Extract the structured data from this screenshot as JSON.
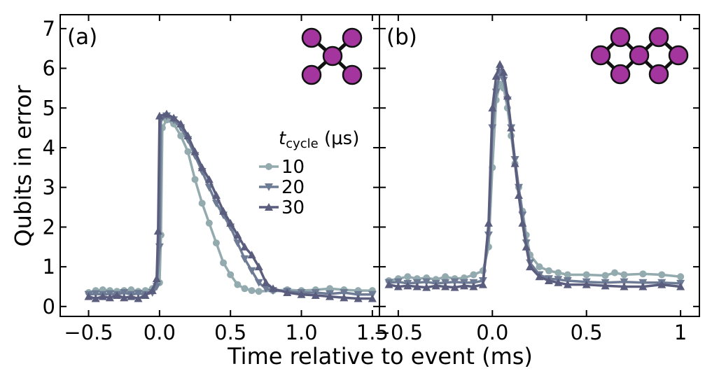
{
  "colors": {
    "s10": "#93aaae",
    "s20": "#6e7b95",
    "s30": "#5a5d7e",
    "node": "#a4359f",
    "node_edge": "#111111"
  },
  "figure": {
    "ylabel": "Qubits in error",
    "xlabel": "Time relative to event (ms)",
    "legend": {
      "title_main": "t",
      "title_sub": "cycle",
      "title_unit": " (μs)",
      "entries": [
        "10",
        "20",
        "30"
      ]
    }
  },
  "chart_data": [
    {
      "type": "line",
      "panel_label": "(a)",
      "xlim": [
        -0.7,
        1.55
      ],
      "ylim": [
        -0.25,
        7.35
      ],
      "xticks": [
        -0.5,
        0.0,
        0.5,
        1.0,
        1.5
      ],
      "xtick_labels": [
        "−0.5",
        "0.0",
        "0.5",
        "1.0",
        "1.5"
      ],
      "yticks": [
        0,
        1,
        2,
        3,
        4,
        5,
        6,
        7
      ],
      "ytick_labels": [
        "0",
        "1",
        "2",
        "3",
        "4",
        "5",
        "6",
        "7"
      ],
      "inset_graph": "five-node star",
      "series": [
        {
          "name": "10",
          "marker": "circle",
          "color": "#93aaae",
          "points": [
            [
              -0.5,
              0.35
            ],
            [
              -0.45,
              0.4
            ],
            [
              -0.4,
              0.42
            ],
            [
              -0.35,
              0.4
            ],
            [
              -0.3,
              0.38
            ],
            [
              -0.25,
              0.4
            ],
            [
              -0.2,
              0.42
            ],
            [
              -0.15,
              0.38
            ],
            [
              -0.1,
              0.4
            ],
            [
              -0.05,
              0.45
            ],
            [
              0.0,
              0.6
            ],
            [
              0.01,
              1.8
            ],
            [
              0.02,
              4.5
            ],
            [
              0.05,
              4.7
            ],
            [
              0.1,
              4.6
            ],
            [
              0.15,
              4.3
            ],
            [
              0.2,
              3.9
            ],
            [
              0.25,
              3.2
            ],
            [
              0.3,
              2.6
            ],
            [
              0.35,
              2.1
            ],
            [
              0.4,
              1.6
            ],
            [
              0.45,
              1.1
            ],
            [
              0.5,
              0.8
            ],
            [
              0.55,
              0.55
            ],
            [
              0.6,
              0.45
            ],
            [
              0.65,
              0.4
            ],
            [
              0.7,
              0.38
            ],
            [
              0.8,
              0.4
            ],
            [
              0.9,
              0.42
            ],
            [
              1.0,
              0.4
            ],
            [
              1.1,
              0.42
            ],
            [
              1.2,
              0.45
            ],
            [
              1.3,
              0.42
            ],
            [
              1.4,
              0.4
            ],
            [
              1.5,
              0.4
            ]
          ]
        },
        {
          "name": "20",
          "marker": "triangle-down",
          "color": "#6e7b95",
          "points": [
            [
              -0.5,
              0.3
            ],
            [
              -0.45,
              0.32
            ],
            [
              -0.4,
              0.3
            ],
            [
              -0.35,
              0.32
            ],
            [
              -0.3,
              0.3
            ],
            [
              -0.25,
              0.35
            ],
            [
              -0.2,
              0.3
            ],
            [
              -0.15,
              0.33
            ],
            [
              -0.1,
              0.3
            ],
            [
              -0.05,
              0.35
            ],
            [
              -0.02,
              0.5
            ],
            [
              0.0,
              1.5
            ],
            [
              0.01,
              4.7
            ],
            [
              0.05,
              4.8
            ],
            [
              0.1,
              4.7
            ],
            [
              0.15,
              4.5
            ],
            [
              0.2,
              4.2
            ],
            [
              0.25,
              3.8
            ],
            [
              0.3,
              3.4
            ],
            [
              0.35,
              3.0
            ],
            [
              0.4,
              2.6
            ],
            [
              0.45,
              2.3
            ],
            [
              0.5,
              2.0
            ],
            [
              0.55,
              1.6
            ],
            [
              0.6,
              1.2
            ],
            [
              0.65,
              0.9
            ],
            [
              0.7,
              0.6
            ],
            [
              0.75,
              0.45
            ],
            [
              0.8,
              0.4
            ],
            [
              0.9,
              0.38
            ],
            [
              1.0,
              0.35
            ],
            [
              1.1,
              0.35
            ],
            [
              1.2,
              0.32
            ],
            [
              1.3,
              0.35
            ],
            [
              1.4,
              0.3
            ],
            [
              1.5,
              0.3
            ]
          ]
        },
        {
          "name": "30",
          "marker": "triangle-up",
          "color": "#5a5d7e",
          "points": [
            [
              -0.5,
              0.25
            ],
            [
              -0.45,
              0.2
            ],
            [
              -0.4,
              0.25
            ],
            [
              -0.35,
              0.22
            ],
            [
              -0.3,
              0.28
            ],
            [
              -0.25,
              0.22
            ],
            [
              -0.2,
              0.25
            ],
            [
              -0.15,
              0.2
            ],
            [
              -0.1,
              0.28
            ],
            [
              -0.05,
              0.4
            ],
            [
              -0.02,
              0.7
            ],
            [
              -0.01,
              1.9
            ],
            [
              0.0,
              4.8
            ],
            [
              0.05,
              4.85
            ],
            [
              0.1,
              4.75
            ],
            [
              0.15,
              4.6
            ],
            [
              0.2,
              4.3
            ],
            [
              0.25,
              3.9
            ],
            [
              0.3,
              3.5
            ],
            [
              0.35,
              3.2
            ],
            [
              0.4,
              2.8
            ],
            [
              0.45,
              2.4
            ],
            [
              0.5,
              2.1
            ],
            [
              0.55,
              1.8
            ],
            [
              0.6,
              1.5
            ],
            [
              0.65,
              1.3
            ],
            [
              0.7,
              1.0
            ],
            [
              0.75,
              0.6
            ],
            [
              0.8,
              0.45
            ],
            [
              0.9,
              0.35
            ],
            [
              1.0,
              0.3
            ],
            [
              1.1,
              0.28
            ],
            [
              1.2,
              0.25
            ],
            [
              1.3,
              0.22
            ],
            [
              1.4,
              0.2
            ],
            [
              1.5,
              0.2
            ]
          ]
        }
      ]
    },
    {
      "type": "line",
      "panel_label": "(b)",
      "xlim": [
        -0.6,
        1.1
      ],
      "ylim": [
        -0.25,
        7.35
      ],
      "xticks": [
        -0.5,
        0.0,
        0.5,
        1.0
      ],
      "xtick_labels": [
        "−0.5",
        "0.0",
        "0.5",
        "1"
      ],
      "yticks": [
        0,
        1,
        2,
        3,
        4,
        5,
        6,
        7
      ],
      "inset_graph": "seven-node double ring",
      "series": [
        {
          "name": "10",
          "marker": "circle",
          "color": "#93aaae",
          "points": [
            [
              -0.55,
              0.65
            ],
            [
              -0.5,
              0.7
            ],
            [
              -0.45,
              0.75
            ],
            [
              -0.4,
              0.7
            ],
            [
              -0.35,
              0.72
            ],
            [
              -0.3,
              0.68
            ],
            [
              -0.25,
              0.75
            ],
            [
              -0.2,
              0.7
            ],
            [
              -0.15,
              0.72
            ],
            [
              -0.1,
              0.8
            ],
            [
              -0.05,
              0.9
            ],
            [
              -0.02,
              1.5
            ],
            [
              0.0,
              3.5
            ],
            [
              0.02,
              5.2
            ],
            [
              0.04,
              5.6
            ],
            [
              0.06,
              5.5
            ],
            [
              0.08,
              5.0
            ],
            [
              0.1,
              4.3
            ],
            [
              0.12,
              3.6
            ],
            [
              0.14,
              3.0
            ],
            [
              0.16,
              2.4
            ],
            [
              0.18,
              1.8
            ],
            [
              0.2,
              1.3
            ],
            [
              0.25,
              1.0
            ],
            [
              0.3,
              0.9
            ],
            [
              0.35,
              0.85
            ],
            [
              0.4,
              0.8
            ],
            [
              0.5,
              0.8
            ],
            [
              0.6,
              0.78
            ],
            [
              0.65,
              0.85
            ],
            [
              0.7,
              0.8
            ],
            [
              0.8,
              0.82
            ],
            [
              0.9,
              0.8
            ],
            [
              1.0,
              0.75
            ]
          ]
        },
        {
          "name": "20",
          "marker": "triangle-down",
          "color": "#6e7b95",
          "points": [
            [
              -0.55,
              0.6
            ],
            [
              -0.5,
              0.62
            ],
            [
              -0.45,
              0.58
            ],
            [
              -0.4,
              0.6
            ],
            [
              -0.35,
              0.62
            ],
            [
              -0.3,
              0.58
            ],
            [
              -0.25,
              0.6
            ],
            [
              -0.2,
              0.62
            ],
            [
              -0.15,
              0.6
            ],
            [
              -0.1,
              0.6
            ],
            [
              -0.05,
              0.65
            ],
            [
              -0.02,
              1.8
            ],
            [
              0.0,
              4.5
            ],
            [
              0.02,
              5.4
            ],
            [
              0.04,
              5.9
            ],
            [
              0.06,
              5.7
            ],
            [
              0.08,
              5.2
            ],
            [
              0.1,
              4.5
            ],
            [
              0.12,
              3.7
            ],
            [
              0.14,
              3.0
            ],
            [
              0.16,
              2.3
            ],
            [
              0.18,
              1.6
            ],
            [
              0.2,
              1.1
            ],
            [
              0.25,
              0.8
            ],
            [
              0.3,
              0.7
            ],
            [
              0.35,
              0.68
            ],
            [
              0.4,
              0.65
            ],
            [
              0.5,
              0.62
            ],
            [
              0.6,
              0.6
            ],
            [
              0.7,
              0.62
            ],
            [
              0.8,
              0.6
            ],
            [
              0.9,
              0.6
            ],
            [
              1.0,
              0.58
            ]
          ]
        },
        {
          "name": "30",
          "marker": "triangle-up",
          "color": "#5a5d7e",
          "points": [
            [
              -0.55,
              0.55
            ],
            [
              -0.5,
              0.5
            ],
            [
              -0.45,
              0.52
            ],
            [
              -0.4,
              0.5
            ],
            [
              -0.35,
              0.48
            ],
            [
              -0.3,
              0.52
            ],
            [
              -0.25,
              0.5
            ],
            [
              -0.2,
              0.48
            ],
            [
              -0.15,
              0.52
            ],
            [
              -0.1,
              0.5
            ],
            [
              -0.05,
              0.55
            ],
            [
              -0.02,
              2.1
            ],
            [
              0.0,
              5.0
            ],
            [
              0.02,
              5.8
            ],
            [
              0.04,
              6.1
            ],
            [
              0.06,
              5.9
            ],
            [
              0.08,
              5.3
            ],
            [
              0.1,
              4.5
            ],
            [
              0.12,
              3.6
            ],
            [
              0.14,
              2.8
            ],
            [
              0.16,
              2.1
            ],
            [
              0.18,
              1.5
            ],
            [
              0.2,
              1.0
            ],
            [
              0.25,
              0.75
            ],
            [
              0.3,
              0.65
            ],
            [
              0.35,
              0.6
            ],
            [
              0.4,
              0.55
            ],
            [
              0.5,
              0.55
            ],
            [
              0.6,
              0.52
            ],
            [
              0.7,
              0.5
            ],
            [
              0.8,
              0.5
            ],
            [
              0.9,
              0.55
            ],
            [
              1.0,
              0.5
            ]
          ]
        }
      ]
    }
  ]
}
